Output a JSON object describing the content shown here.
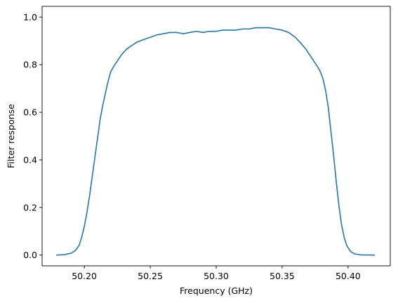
{
  "chart_data": {
    "type": "line",
    "title": "",
    "xlabel": "Frequency (GHz)",
    "ylabel": "Filter response",
    "xlim": [
      50.168,
      50.432
    ],
    "ylim": [
      -0.045,
      1.045
    ],
    "xticks": [
      50.2,
      50.25,
      50.3,
      50.35,
      50.4
    ],
    "xtick_labels": [
      "50.20",
      "50.25",
      "50.30",
      "50.35",
      "50.40"
    ],
    "yticks": [
      0.0,
      0.2,
      0.4,
      0.6,
      0.8,
      1.0
    ],
    "ytick_labels": [
      "0.0",
      "0.2",
      "0.4",
      "0.6",
      "0.8",
      "1.0"
    ],
    "grid": false,
    "legend": "none",
    "series": [
      {
        "color": "#1f77b4",
        "x": [
          50.179,
          50.185,
          50.19,
          50.193,
          50.196,
          50.198,
          50.2,
          50.202,
          50.204,
          50.206,
          50.208,
          50.21,
          50.212,
          50.214,
          50.216,
          50.218,
          50.22,
          50.222,
          50.225,
          50.228,
          50.232,
          50.236,
          50.24,
          50.245,
          50.25,
          50.255,
          50.26,
          50.265,
          50.27,
          50.275,
          50.28,
          50.285,
          50.29,
          50.295,
          50.3,
          50.305,
          50.31,
          50.315,
          50.32,
          50.325,
          50.33,
          50.335,
          50.34,
          50.345,
          50.35,
          50.355,
          50.36,
          50.365,
          50.368,
          50.371,
          50.374,
          50.377,
          50.379,
          50.381,
          50.383,
          50.385,
          50.387,
          50.389,
          50.391,
          50.393,
          50.395,
          50.397,
          50.399,
          50.402,
          50.405,
          50.41,
          50.42
        ],
        "y": [
          0.0,
          0.002,
          0.008,
          0.018,
          0.04,
          0.075,
          0.12,
          0.18,
          0.25,
          0.33,
          0.41,
          0.49,
          0.57,
          0.63,
          0.68,
          0.73,
          0.77,
          0.79,
          0.815,
          0.84,
          0.865,
          0.88,
          0.895,
          0.905,
          0.915,
          0.925,
          0.93,
          0.935,
          0.935,
          0.93,
          0.935,
          0.94,
          0.935,
          0.94,
          0.94,
          0.945,
          0.945,
          0.945,
          0.95,
          0.95,
          0.955,
          0.955,
          0.955,
          0.95,
          0.945,
          0.935,
          0.915,
          0.885,
          0.865,
          0.84,
          0.815,
          0.79,
          0.77,
          0.74,
          0.69,
          0.62,
          0.52,
          0.42,
          0.31,
          0.21,
          0.13,
          0.075,
          0.04,
          0.015,
          0.005,
          0.001,
          0.0
        ]
      }
    ]
  }
}
